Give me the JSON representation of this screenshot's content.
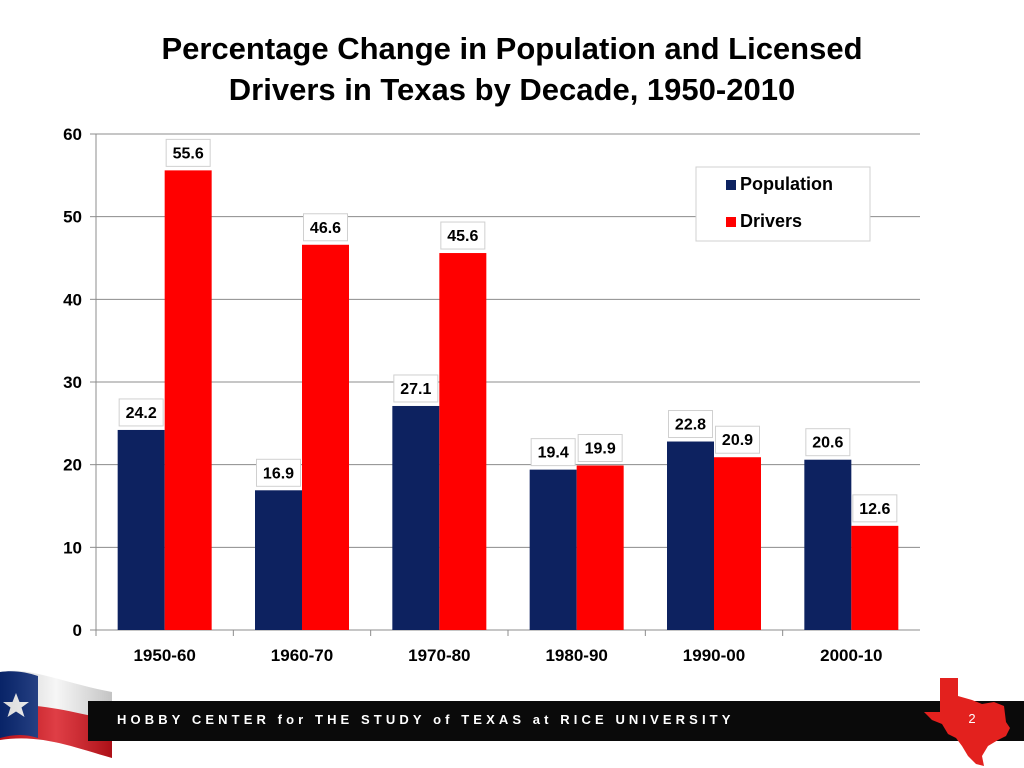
{
  "slide": {
    "page_number": "2",
    "footer_text": "HOBBY CENTER for THE STUDY of TEXAS at RICE UNIVERSITY"
  },
  "colors": {
    "population": "#0d2260",
    "drivers": "#ff0000",
    "gridline": "#8c8c8c",
    "texas_red": "#e3211e"
  },
  "chart_data": {
    "type": "bar",
    "title_lines": [
      "Percentage Change in Population and Licensed",
      "Drivers in Texas by Decade, 1950-2010"
    ],
    "categories": [
      "1950-60",
      "1960-70",
      "1970-80",
      "1980-90",
      "1990-00",
      "2000-10"
    ],
    "series": [
      {
        "name": "Population",
        "values": [
          24.2,
          16.9,
          27.1,
          19.4,
          22.8,
          20.6
        ]
      },
      {
        "name": "Drivers",
        "values": [
          55.6,
          46.6,
          45.6,
          19.9,
          20.9,
          12.6
        ]
      }
    ],
    "ylim": [
      0,
      60
    ],
    "yticks": [
      0,
      10,
      20,
      30,
      40,
      50,
      60
    ],
    "grid": true,
    "legend": "top-right",
    "xlabel": "",
    "ylabel": ""
  }
}
